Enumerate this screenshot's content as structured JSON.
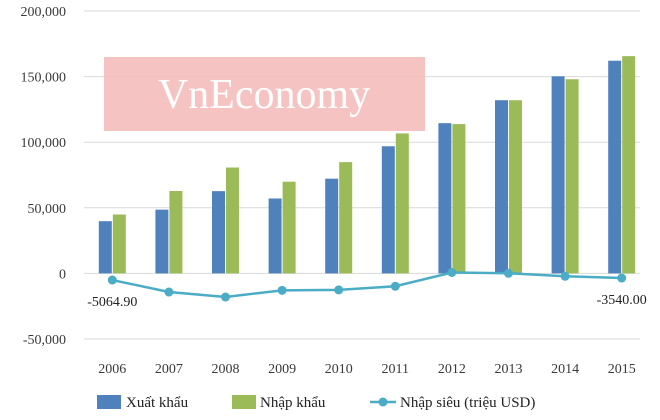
{
  "chart_data": {
    "type": "bar",
    "categories": [
      "2006",
      "2007",
      "2008",
      "2009",
      "2010",
      "2011",
      "2012",
      "2013",
      "2014",
      "2015"
    ],
    "series": [
      {
        "name": "Xuất khẩu",
        "kind": "bar",
        "color": "#4f81bd",
        "values": [
          39800,
          48600,
          62700,
          57100,
          72200,
          96900,
          114500,
          132000,
          150200,
          162100
        ]
      },
      {
        "name": "Nhập khẩu",
        "kind": "bar",
        "color": "#9bbb59",
        "values": [
          44900,
          62800,
          80700,
          69900,
          84800,
          106700,
          113800,
          132000,
          148000,
          165600
        ]
      },
      {
        "name": "Nhập siêu (triệu USD)",
        "kind": "line",
        "color": "#4bacc6",
        "values": [
          -5064.9,
          -14200,
          -18000,
          -12900,
          -12600,
          -9800,
          700,
          100,
          -2200,
          -3540
        ]
      }
    ],
    "ylim": [
      -50000,
      200000
    ],
    "yticks": [
      -50000,
      0,
      50000,
      100000,
      150000,
      200000
    ],
    "ytick_labels": [
      "-50,000",
      "0",
      "50,000",
      "100,000",
      "150,000",
      "200,000"
    ],
    "grid": true,
    "legend_position": "bottom",
    "annotations": [
      {
        "category": "2006",
        "series": "Nhập siêu (triệu USD)",
        "text": "-5064.90"
      },
      {
        "category": "2015",
        "series": "Nhập siêu (triệu USD)",
        "text": "-3540.00"
      }
    ],
    "title": "",
    "xlabel": "",
    "ylabel": ""
  },
  "watermark": {
    "text": "VnEconomy",
    "background_color": "#f4b8b8"
  }
}
